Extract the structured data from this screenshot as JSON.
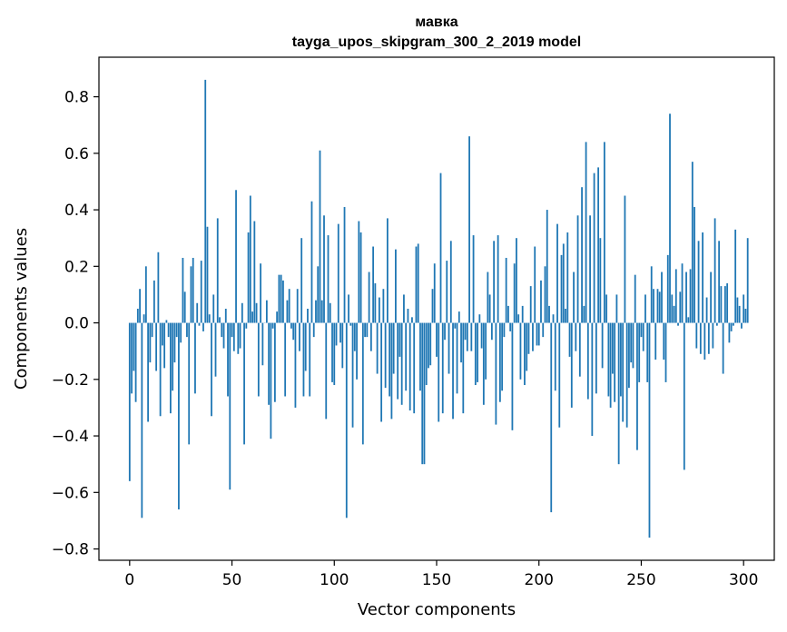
{
  "chart_data": {
    "type": "bar",
    "title": "мавка",
    "subtitle": "tayga_upos_skipgram_300_2_2019 model",
    "xlabel": "Vector components",
    "ylabel": "Components values",
    "xlim": [
      -15,
      315
    ],
    "ylim": [
      -0.84,
      0.94
    ],
    "xticks": [
      0,
      50,
      100,
      150,
      200,
      250,
      300
    ],
    "yticks": [
      -0.8,
      -0.6,
      -0.4,
      -0.2,
      0.0,
      0.2,
      0.4,
      0.6,
      0.8
    ],
    "ytick_labels": [
      "−0.8",
      "−0.6",
      "−0.4",
      "−0.2",
      "0.0",
      "0.2",
      "0.4",
      "0.6",
      "0.8"
    ],
    "xtick_labels": [
      "0",
      "50",
      "100",
      "150",
      "200",
      "250",
      "300"
    ],
    "grid": false,
    "bar_color": "#1f77b4",
    "values": [
      -0.56,
      -0.25,
      -0.17,
      -0.28,
      0.05,
      0.12,
      -0.69,
      0.03,
      0.2,
      -0.35,
      -0.14,
      -0.05,
      0.15,
      -0.17,
      0.25,
      -0.33,
      -0.08,
      -0.16,
      0.01,
      -0.05,
      -0.32,
      -0.24,
      -0.14,
      -0.05,
      -0.66,
      -0.07,
      0.23,
      0.11,
      -0.05,
      -0.43,
      0.2,
      0.23,
      -0.25,
      0.07,
      -0.01,
      0.22,
      -0.03,
      0.86,
      0.34,
      0.03,
      -0.33,
      0.1,
      -0.19,
      0.37,
      0.02,
      -0.05,
      -0.09,
      0.05,
      -0.26,
      -0.59,
      -0.05,
      -0.1,
      0.47,
      -0.11,
      -0.09,
      0.07,
      -0.43,
      -0.02,
      0.32,
      0.45,
      0.04,
      0.36,
      0.07,
      -0.26,
      0.21,
      -0.15,
      0.0,
      0.08,
      -0.29,
      -0.41,
      -0.02,
      -0.28,
      0.04,
      0.17,
      0.17,
      0.15,
      -0.26,
      0.08,
      0.12,
      -0.02,
      -0.06,
      -0.3,
      0.12,
      -0.1,
      0.3,
      -0.26,
      -0.17,
      0.05,
      -0.26,
      0.43,
      -0.05,
      0.08,
      0.2,
      0.61,
      0.08,
      0.38,
      -0.34,
      0.31,
      0.07,
      -0.21,
      -0.22,
      -0.08,
      0.35,
      -0.07,
      -0.16,
      0.41,
      -0.69,
      0.1,
      -0.01,
      -0.37,
      -0.1,
      -0.2,
      0.36,
      0.32,
      -0.43,
      -0.05,
      -0.05,
      0.18,
      -0.1,
      0.27,
      0.14,
      -0.18,
      0.09,
      -0.35,
      0.12,
      -0.23,
      0.37,
      -0.26,
      -0.34,
      -0.18,
      0.26,
      -0.27,
      -0.12,
      -0.29,
      0.1,
      -0.24,
      0.05,
      -0.31,
      0.02,
      -0.32,
      0.27,
      0.28,
      -0.24,
      -0.5,
      -0.5,
      -0.22,
      -0.16,
      -0.15,
      0.12,
      0.21,
      -0.12,
      -0.35,
      0.53,
      -0.32,
      -0.06,
      0.22,
      -0.18,
      0.29,
      -0.34,
      -0.02,
      -0.25,
      0.04,
      -0.14,
      -0.32,
      -0.06,
      -0.1,
      0.66,
      -0.1,
      0.31,
      -0.22,
      -0.21,
      0.03,
      -0.09,
      -0.29,
      -0.2,
      0.18,
      0.1,
      -0.06,
      0.29,
      -0.36,
      0.31,
      -0.28,
      -0.24,
      -0.05,
      0.23,
      0.06,
      -0.03,
      -0.38,
      0.21,
      0.3,
      0.03,
      -0.2,
      0.06,
      -0.22,
      -0.17,
      -0.11,
      0.13,
      -0.1,
      0.27,
      -0.08,
      -0.08,
      0.15,
      -0.05,
      0.2,
      0.4,
      0.06,
      -0.67,
      0.03,
      -0.24,
      0.35,
      -0.37,
      0.24,
      0.28,
      0.05,
      0.32,
      -0.12,
      -0.3,
      0.18,
      -0.1,
      0.38,
      -0.19,
      0.48,
      0.06,
      0.64,
      -0.27,
      0.38,
      -0.4,
      0.53,
      -0.25,
      0.55,
      0.3,
      -0.16,
      0.64,
      0.1,
      -0.26,
      -0.3,
      -0.18,
      -0.28,
      0.1,
      -0.5,
      -0.26,
      -0.35,
      0.45,
      -0.37,
      -0.23,
      -0.14,
      -0.16,
      0.17,
      -0.45,
      -0.21,
      -0.05,
      -0.1,
      0.1,
      -0.21,
      -0.76,
      0.2,
      0.12,
      -0.13,
      0.12,
      0.11,
      0.18,
      -0.13,
      -0.21,
      0.24,
      0.74,
      0.1,
      0.06,
      0.19,
      -0.01,
      0.11,
      0.21,
      -0.52,
      0.18,
      0.02,
      0.19,
      0.57,
      0.41,
      -0.09,
      0.29,
      -0.11,
      0.32,
      -0.13,
      0.09,
      -0.11,
      0.18,
      -0.09,
      0.37,
      -0.01,
      0.29,
      0.13,
      -0.18,
      0.13,
      0.14,
      -0.07,
      -0.03,
      -0.01,
      0.33,
      0.09,
      0.06,
      -0.02,
      0.1,
      0.05,
      0.3
    ]
  }
}
